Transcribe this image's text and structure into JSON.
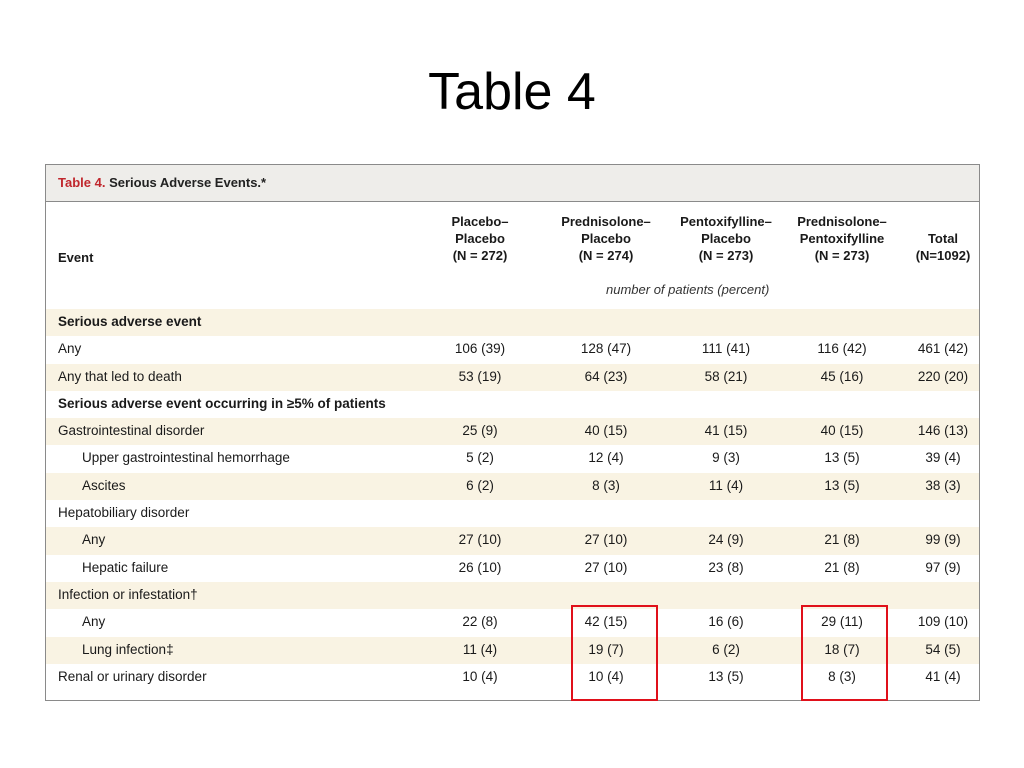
{
  "slide": {
    "title": "Table 4"
  },
  "table": {
    "caption_number": "Table 4.",
    "caption_text": " Serious Adverse Events.*",
    "event_header": "Event",
    "columns": [
      {
        "line1": "Placebo–",
        "line2": "Placebo",
        "line3": "(N = 272)"
      },
      {
        "line1": "Prednisolone–",
        "line2": "Placebo",
        "line3": "(N = 274)"
      },
      {
        "line1": "Pentoxifylline–",
        "line2": "Placebo",
        "line3": "(N = 273)"
      },
      {
        "line1": "Prednisolone–",
        "line2": "Pentoxifylline",
        "line3": "(N = 273)"
      },
      {
        "line1": "",
        "line2": "Total",
        "line3": "(N=1092)"
      }
    ],
    "units": "number of patients (percent)",
    "rows": [
      {
        "label": "Serious adverse event",
        "values": [
          "",
          "",
          "",
          "",
          ""
        ]
      },
      {
        "label": "Any",
        "values": [
          "106 (39)",
          "128 (47)",
          "111 (41)",
          "116 (42)",
          "461 (42)"
        ]
      },
      {
        "label": "Any that led to death",
        "values": [
          "53 (19)",
          "64 (23)",
          "58 (21)",
          "45 (16)",
          "220 (20)"
        ]
      },
      {
        "label": "Serious adverse event occurring in ≥5% of patients",
        "values": [
          "",
          "",
          "",
          "",
          ""
        ]
      },
      {
        "label": "Gastrointestinal disorder",
        "values": [
          "25 (9)",
          "40 (15)",
          "41 (15)",
          "40 (15)",
          "146 (13)"
        ]
      },
      {
        "label": "Upper gastrointestinal hemorrhage",
        "values": [
          "5 (2)",
          "12 (4)",
          "9 (3)",
          "13 (5)",
          "39 (4)"
        ]
      },
      {
        "label": "Ascites",
        "values": [
          "6 (2)",
          "8 (3)",
          "11 (4)",
          "13 (5)",
          "38 (3)"
        ]
      },
      {
        "label": "Hepatobiliary disorder",
        "values": [
          "",
          "",
          "",
          "",
          ""
        ]
      },
      {
        "label": "Any",
        "values": [
          "27 (10)",
          "27 (10)",
          "24 (9)",
          "21 (8)",
          "99 (9)"
        ]
      },
      {
        "label": "Hepatic failure",
        "values": [
          "26 (10)",
          "27 (10)",
          "23 (8)",
          "21 (8)",
          "97 (9)"
        ]
      },
      {
        "label": "Infection or infestation†",
        "values": [
          "",
          "",
          "",
          "",
          ""
        ]
      },
      {
        "label": "Any",
        "values": [
          "22 (8)",
          "42 (15)",
          "16 (6)",
          "29 (11)",
          "109 (10)"
        ]
      },
      {
        "label": "Lung infection‡",
        "values": [
          "11 (4)",
          "19 (7)",
          "6 (2)",
          "18 (7)",
          "54 (5)"
        ]
      },
      {
        "label": "Renal or urinary disorder",
        "values": [
          "10 (4)",
          "10 (4)",
          "13 (5)",
          "8 (3)",
          "41 (4)"
        ]
      }
    ],
    "highlight_color": "#e0101a"
  }
}
